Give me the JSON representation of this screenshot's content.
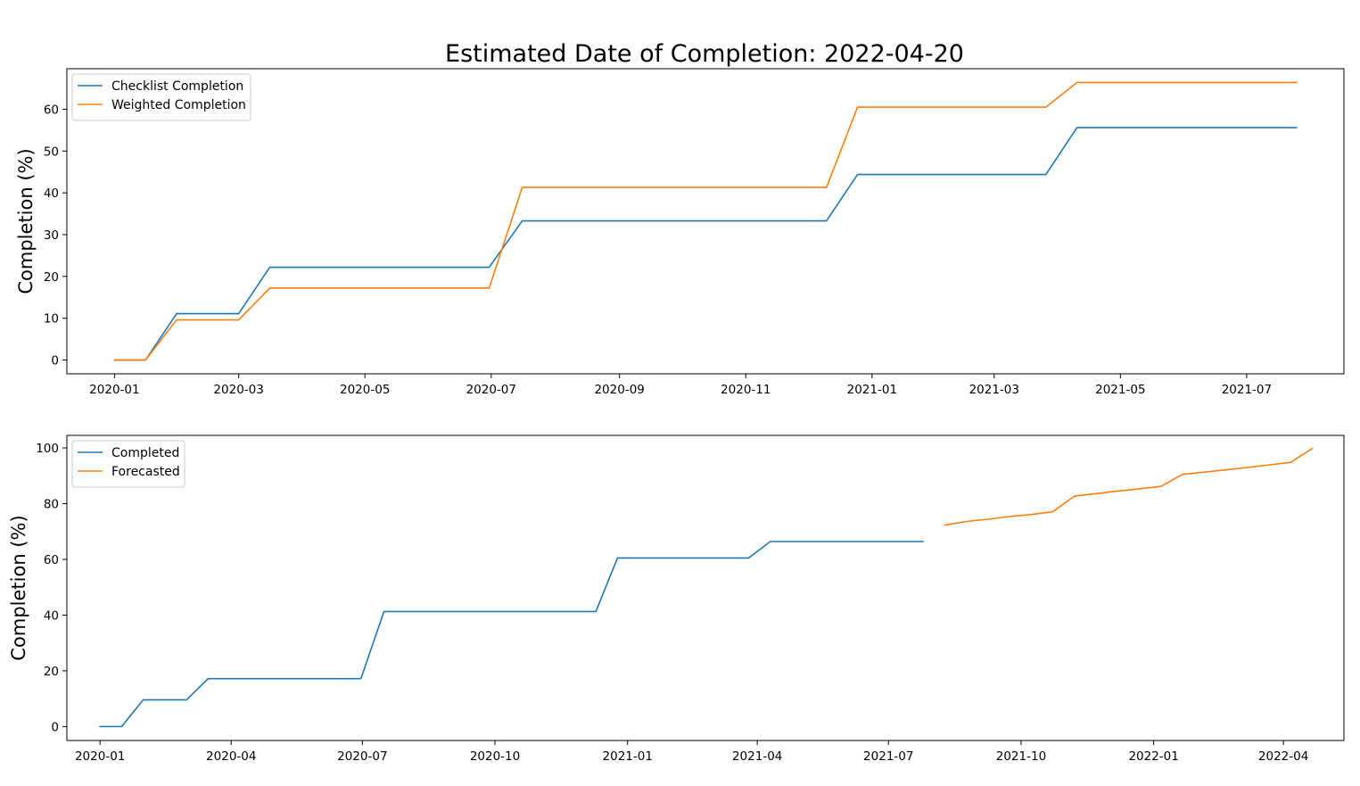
{
  "figure": {
    "title": "Estimated Date of Completion: 2022-04-20"
  },
  "colors": {
    "blue": "#1f77b4",
    "orange": "#ff7f0e"
  },
  "chart_data": [
    {
      "type": "line",
      "x_axis": "date",
      "xlabel": "",
      "ylabel": "Completion (%)",
      "xlim": [
        "2019-12-09",
        "2021-08-17"
      ],
      "ylim": [
        -3.3,
        69.7
      ],
      "x_ticks": [
        "2020-01-01",
        "2020-03-01",
        "2020-05-01",
        "2020-07-01",
        "2020-09-01",
        "2020-11-01",
        "2021-01-01",
        "2021-03-01",
        "2021-05-01",
        "2021-07-01"
      ],
      "x_tick_labels": [
        "2020-01",
        "2020-03",
        "2020-05",
        "2020-07",
        "2020-09",
        "2020-11",
        "2021-01",
        "2021-03",
        "2021-05",
        "2021-07"
      ],
      "y_ticks": [
        0,
        10,
        20,
        30,
        40,
        50,
        60
      ],
      "grid": false,
      "legend_position": "top-left",
      "series": [
        {
          "name": "Checklist Completion",
          "color": "#1f77b4",
          "points": [
            [
              "2020-01-01",
              0
            ],
            [
              "2020-01-16",
              0
            ],
            [
              "2020-01-31",
              11.1
            ],
            [
              "2020-03-01",
              11.1
            ],
            [
              "2020-03-16",
              22.2
            ],
            [
              "2020-06-30",
              22.2
            ],
            [
              "2020-07-16",
              33.3
            ],
            [
              "2020-12-10",
              33.3
            ],
            [
              "2020-12-25",
              44.4
            ],
            [
              "2021-03-26",
              44.4
            ],
            [
              "2021-04-10",
              55.6
            ],
            [
              "2021-07-25",
              55.6
            ]
          ]
        },
        {
          "name": "Weighted Completion",
          "color": "#ff7f0e",
          "points": [
            [
              "2020-01-01",
              0
            ],
            [
              "2020-01-16",
              0
            ],
            [
              "2020-01-31",
              9.6
            ],
            [
              "2020-03-01",
              9.6
            ],
            [
              "2020-03-16",
              17.2
            ],
            [
              "2020-06-30",
              17.2
            ],
            [
              "2020-07-16",
              41.3
            ],
            [
              "2020-12-10",
              41.3
            ],
            [
              "2020-12-25",
              60.5
            ],
            [
              "2021-03-26",
              60.5
            ],
            [
              "2021-04-10",
              66.4
            ],
            [
              "2021-07-25",
              66.4
            ]
          ]
        }
      ]
    },
    {
      "type": "line",
      "x_axis": "date",
      "xlabel": "",
      "ylabel": "Completion (%)",
      "xlim": [
        "2019-12-09",
        "2022-05-13"
      ],
      "ylim": [
        -5,
        104.5
      ],
      "x_ticks": [
        "2020-01-01",
        "2020-04-01",
        "2020-07-01",
        "2020-10-01",
        "2021-01-01",
        "2021-04-01",
        "2021-07-01",
        "2021-10-01",
        "2022-01-01",
        "2022-04-01"
      ],
      "x_tick_labels": [
        "2020-01",
        "2020-04",
        "2020-07",
        "2020-10",
        "2021-01",
        "2021-04",
        "2021-07",
        "2021-10",
        "2022-01",
        "2022-04"
      ],
      "y_ticks": [
        0,
        20,
        40,
        60,
        80,
        100
      ],
      "grid": false,
      "legend_position": "top-left",
      "series": [
        {
          "name": "Completed",
          "color": "#1f77b4",
          "points": [
            [
              "2020-01-01",
              0
            ],
            [
              "2020-01-16",
              0
            ],
            [
              "2020-01-31",
              9.6
            ],
            [
              "2020-03-01",
              9.6
            ],
            [
              "2020-03-16",
              17.2
            ],
            [
              "2020-06-30",
              17.2
            ],
            [
              "2020-07-16",
              41.3
            ],
            [
              "2020-12-10",
              41.3
            ],
            [
              "2020-12-25",
              60.5
            ],
            [
              "2021-03-26",
              60.5
            ],
            [
              "2021-04-10",
              66.4
            ],
            [
              "2021-07-25",
              66.4
            ]
          ]
        },
        {
          "name": "Forecasted",
          "color": "#ff7f0e",
          "points": [
            [
              "2021-08-09",
              72.3
            ],
            [
              "2021-08-24",
              73.6
            ],
            [
              "2021-09-08",
              74.4
            ],
            [
              "2021-09-23",
              75.4
            ],
            [
              "2021-10-08",
              76.1
            ],
            [
              "2021-10-23",
              77.1
            ],
            [
              "2021-11-07",
              82.7
            ],
            [
              "2021-11-22",
              83.6
            ],
            [
              "2021-12-07",
              84.5
            ],
            [
              "2021-12-22",
              85.3
            ],
            [
              "2022-01-06",
              86.2
            ],
            [
              "2022-01-21",
              90.5
            ],
            [
              "2022-02-05",
              91.3
            ],
            [
              "2022-02-20",
              92.1
            ],
            [
              "2022-03-07",
              93.0
            ],
            [
              "2022-03-22",
              93.9
            ],
            [
              "2022-04-06",
              94.8
            ],
            [
              "2022-04-21",
              99.8
            ]
          ]
        }
      ]
    }
  ]
}
